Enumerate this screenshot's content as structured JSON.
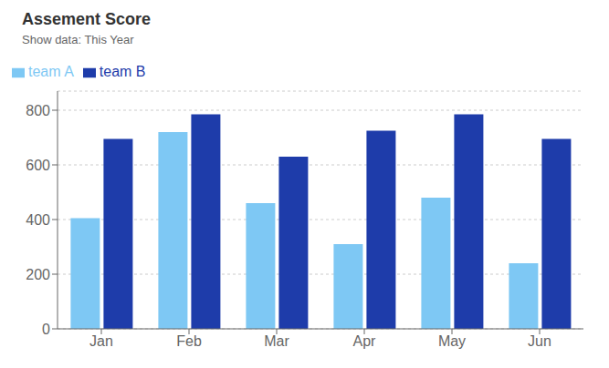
{
  "chart_data": {
    "type": "bar",
    "title": "Assement Score",
    "subtitle": "Show data: This Year",
    "categories": [
      "Jan",
      "Feb",
      "Mar",
      "Apr",
      "May",
      "Jun"
    ],
    "series": [
      {
        "name": "team A",
        "color": "#7ec8f4",
        "values": [
          405,
          720,
          460,
          310,
          480,
          240
        ]
      },
      {
        "name": "team B",
        "color": "#1e3caa",
        "values": [
          695,
          785,
          630,
          725,
          785,
          695
        ]
      }
    ],
    "ylim": [
      0,
      870
    ],
    "yticks": [
      0,
      200,
      400,
      600,
      800
    ],
    "grid": true,
    "legend": "upper left"
  }
}
